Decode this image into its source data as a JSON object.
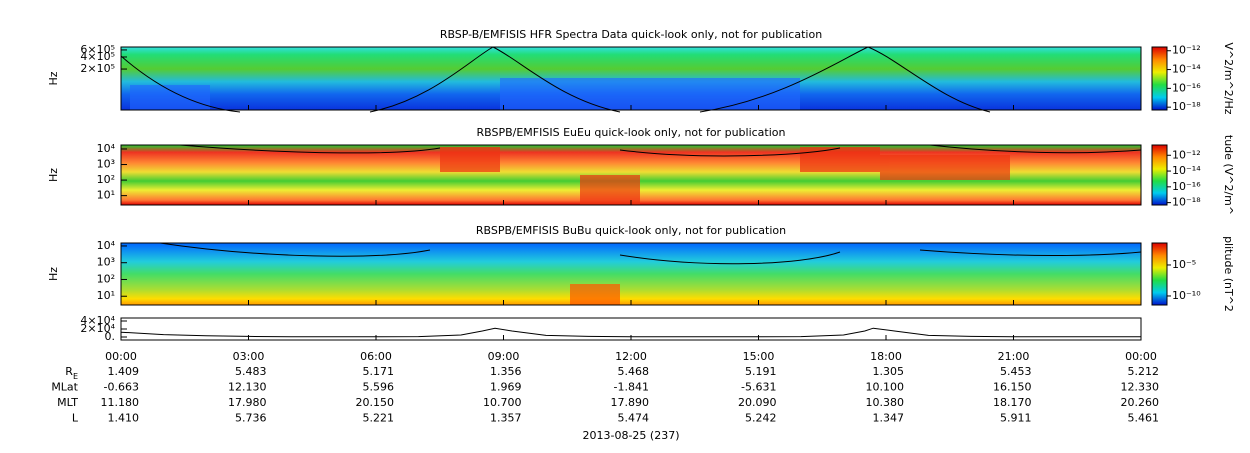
{
  "chart_data": [
    {
      "type": "spectrogram",
      "title": "RBSP-B/EMFISIS  HFR Spectra Data quick-look only, not for publication",
      "y_label": "Hz",
      "log_y": true,
      "ylim": [
        19000,
        710000
      ],
      "yticks": [
        {
          "value": 600000,
          "label": "6×10⁵"
        },
        {
          "value": 400000,
          "label": "4×10⁵"
        },
        {
          "value": 200000,
          "label": "2×10⁵"
        }
      ],
      "colorbar": {
        "label": "V^2/m^2/Hz",
        "clim": [
          5e-19,
          2.5e-12
        ],
        "ticks": [
          {
            "value": 1e-12,
            "label": "10⁻¹²"
          },
          {
            "value": 1e-14,
            "label": "10⁻¹⁴"
          },
          {
            "value": 1e-16,
            "label": "10⁻¹⁶"
          },
          {
            "value": 1e-18,
            "label": "10⁻¹⁸"
          }
        ]
      }
    },
    {
      "type": "spectrogram",
      "title": "RBSPB/EMFISIS  EuEu quick-look only, not for publication",
      "y_label": "Hz",
      "log_y": true,
      "ylim": [
        2.5,
        18000
      ],
      "yticks": [
        {
          "value": 10000,
          "label": "10⁴"
        },
        {
          "value": 1000,
          "label": "10³"
        },
        {
          "value": 100,
          "label": "10²"
        },
        {
          "value": 10,
          "label": "10¹"
        }
      ],
      "colorbar": {
        "label": "tude (V^2/m^",
        "clim": [
          5e-19,
          2e-11
        ],
        "ticks": [
          {
            "value": 1e-12,
            "label": "10⁻¹²"
          },
          {
            "value": 1e-14,
            "label": "10⁻¹⁴"
          },
          {
            "value": 1e-16,
            "label": "10⁻¹⁶"
          },
          {
            "value": 1e-18,
            "label": "10⁻¹⁸"
          }
        ]
      }
    },
    {
      "type": "spectrogram",
      "title": "RBSPB/EMFISIS  BuBu quick-look only, not for publication",
      "y_label": "Hz",
      "log_y": true,
      "ylim": [
        3,
        15000
      ],
      "yticks": [
        {
          "value": 10000,
          "label": "10⁴"
        },
        {
          "value": 1000,
          "label": "10³"
        },
        {
          "value": 100,
          "label": "10²"
        },
        {
          "value": 10,
          "label": "10¹"
        }
      ],
      "colorbar": {
        "label": "plitude (nT^2",
        "clim": [
          3.5e-12,
          0.035
        ],
        "ticks": [
          {
            "value": 1e-05,
            "label": "10⁻⁵"
          },
          {
            "value": 1e-10,
            "label": "10⁻¹⁰"
          }
        ]
      }
    },
    {
      "type": "line",
      "color": "#000000",
      "ylim": [
        -7500,
        47500
      ],
      "yticks": [
        {
          "value": 40000,
          "label": "4×10⁴"
        },
        {
          "value": 20000,
          "label": "2×10⁴"
        },
        {
          "value": 0,
          "label": "0."
        }
      ],
      "xlim": [
        0,
        24
      ],
      "xticks": [
        {
          "value": 0,
          "label": "00:00"
        },
        {
          "value": 3,
          "label": "03:00"
        },
        {
          "value": 6,
          "label": "06:00"
        },
        {
          "value": 9,
          "label": "09:00"
        },
        {
          "value": 12,
          "label": "12:00"
        },
        {
          "value": 15,
          "label": "15:00"
        },
        {
          "value": 18,
          "label": "18:00"
        },
        {
          "value": 21,
          "label": "21:00"
        },
        {
          "value": 24,
          "label": "00:00"
        }
      ],
      "x": [
        0,
        1,
        2,
        3,
        4,
        5,
        6,
        7,
        8,
        8.5,
        8.8,
        9.2,
        10,
        11,
        12,
        13,
        14,
        15,
        16,
        17,
        17.5,
        17.7,
        18.2,
        19,
        20,
        21,
        22,
        23,
        24
      ],
      "values": [
        12000,
        6000,
        3000,
        1500,
        800,
        500,
        500,
        1000,
        5000,
        15000,
        22000,
        15000,
        4000,
        1500,
        700,
        500,
        500,
        500,
        1000,
        5000,
        15000,
        22000,
        15000,
        4000,
        1500,
        700,
        500,
        500,
        600
      ],
      "ephemeris": [
        {
          "label": "RE",
          "values": [
            "1.409",
            "5.483",
            "5.171",
            "1.356",
            "5.468",
            "5.191",
            "1.305",
            "5.453",
            "5.212"
          ]
        },
        {
          "label": "MLat",
          "values": [
            "-0.663",
            "12.130",
            "5.596",
            "1.969",
            "-1.841",
            "-5.631",
            "10.100",
            "16.150",
            "12.330"
          ]
        },
        {
          "label": "MLT",
          "values": [
            "11.180",
            "17.980",
            "20.150",
            "10.700",
            "17.890",
            "20.090",
            "10.380",
            "18.170",
            "20.260"
          ]
        },
        {
          "label": "L",
          "values": [
            "1.410",
            "5.736",
            "5.221",
            "1.357",
            "5.474",
            "5.242",
            "1.347",
            "5.911",
            "5.461"
          ]
        }
      ],
      "date_label": "2013-08-25 (237)"
    }
  ]
}
